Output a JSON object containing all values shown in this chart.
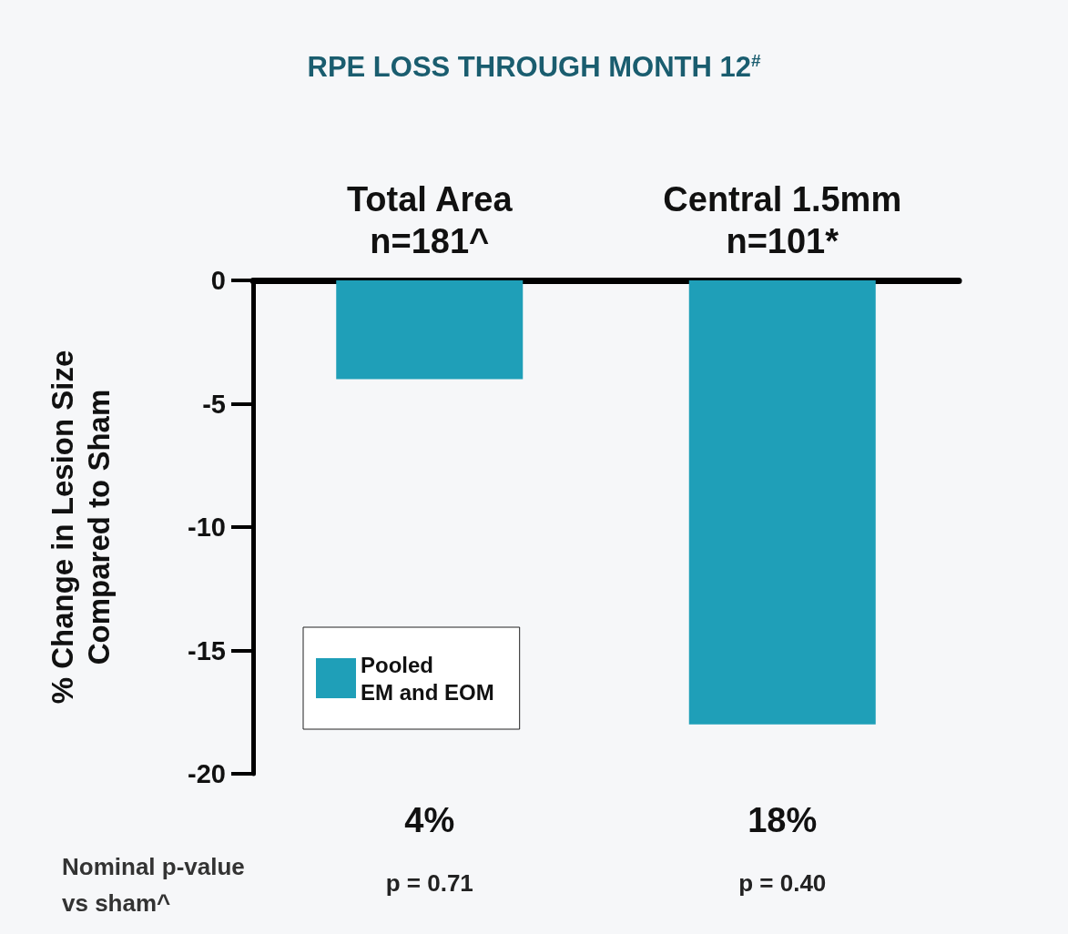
{
  "chart_data": {
    "type": "bar",
    "title": "RPE LOSS THROUGH MONTH 12$^{#}$",
    "categories": [
      "Total Area\nn=181^",
      "Central 1.5mm\nn=101*"
    ],
    "series": [
      {
        "name": "Pooled EM and EOM",
        "color": "#1f9fb8",
        "values": [
          -4,
          -18
        ]
      }
    ],
    "value_labels": [
      "4%",
      "18%"
    ],
    "ylabel": "% Change in Lesion Size\nCompared to Sham",
    "ylim": [
      -20,
      0
    ],
    "yticks": [
      0,
      -5,
      -10,
      -15,
      -20
    ],
    "grid": false,
    "legend": "bottom left",
    "annotations": [
      "Nominal p-value\nvs sham^",
      "p = 0.71",
      "p = 0.40"
    ]
  }
}
